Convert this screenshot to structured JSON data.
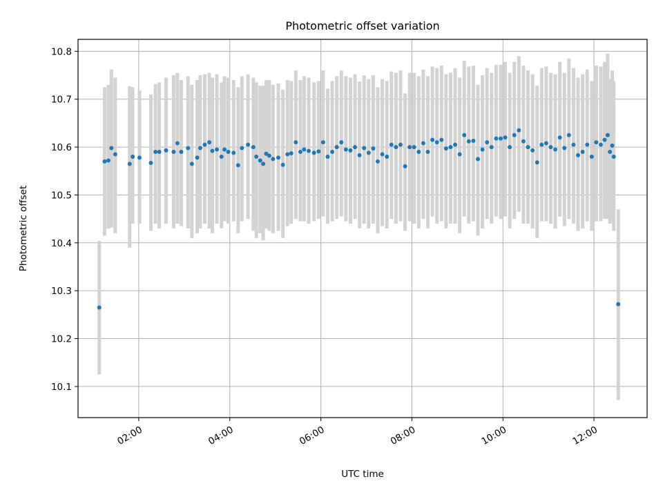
{
  "chart_data": {
    "type": "scatter",
    "title": "Photometric offset variation",
    "xlabel": "UTC time",
    "ylabel": "Photometric offset",
    "x_ticks": [
      "02:00",
      "04:00",
      "06:00",
      "08:00",
      "10:00",
      "12:00"
    ],
    "y_ticks": [
      "10.1",
      "10.2",
      "10.3",
      "10.4",
      "10.5",
      "10.6",
      "10.7",
      "10.8"
    ],
    "xlim": [
      "00:40",
      "13:10"
    ],
    "ylim": [
      10.035,
      10.825
    ],
    "grid": true,
    "colors": {
      "points": "#1f77b4",
      "errorbars": "#d3d3d3",
      "grid": "#b0b0b0"
    },
    "series": [
      {
        "x": [
          "01:08",
          "01:15",
          "01:20",
          "01:24",
          "01:29",
          "01:48",
          "01:52",
          "02:01",
          "02:16",
          "02:22",
          "02:27",
          "02:36",
          "02:46",
          "02:51",
          "02:56",
          "03:05",
          "03:10",
          "03:17",
          "03:21",
          "03:27",
          "03:33",
          "03:37",
          "03:43",
          "03:49",
          "03:53",
          "03:58",
          "04:05",
          "04:11",
          "04:16",
          "04:24",
          "04:31",
          "04:35",
          "04:40",
          "04:44",
          "04:48",
          "04:52",
          "04:57",
          "05:04",
          "05:10",
          "05:16",
          "05:21",
          "05:27",
          "05:33",
          "05:38",
          "05:44",
          "05:51",
          "05:57",
          "06:03",
          "06:09",
          "06:15",
          "06:21",
          "06:27",
          "06:33",
          "06:39",
          "06:45",
          "06:51",
          "06:57",
          "07:03",
          "07:09",
          "07:15",
          "07:21",
          "07:27",
          "07:33",
          "07:39",
          "07:45",
          "07:51",
          "07:57",
          "08:03",
          "08:09",
          "08:15",
          "08:21",
          "08:27",
          "08:33",
          "08:39",
          "08:45",
          "08:51",
          "08:57",
          "09:03",
          "09:09",
          "09:15",
          "09:21",
          "09:27",
          "09:33",
          "09:39",
          "09:45",
          "09:51",
          "09:57",
          "10:03",
          "10:09",
          "10:15",
          "10:21",
          "10:27",
          "10:33",
          "10:39",
          "10:45",
          "10:51",
          "10:57",
          "11:03",
          "11:09",
          "11:15",
          "11:21",
          "11:27",
          "11:33",
          "11:39",
          "11:45",
          "11:51",
          "11:57",
          "12:03",
          "12:09",
          "12:14",
          "12:18",
          "12:21",
          "12:24",
          "12:26",
          "12:32"
        ],
        "y": [
          10.265,
          10.57,
          10.572,
          10.598,
          10.585,
          10.565,
          10.58,
          10.578,
          10.567,
          10.59,
          10.59,
          10.593,
          10.59,
          10.608,
          10.59,
          10.598,
          10.565,
          10.578,
          10.598,
          10.605,
          10.61,
          10.592,
          10.595,
          10.58,
          10.595,
          10.59,
          10.588,
          10.562,
          10.598,
          10.605,
          10.6,
          10.58,
          10.572,
          10.565,
          10.586,
          10.582,
          10.575,
          10.578,
          10.563,
          10.585,
          10.587,
          10.61,
          10.59,
          10.595,
          10.592,
          10.588,
          10.591,
          10.61,
          10.58,
          10.59,
          10.6,
          10.61,
          10.595,
          10.593,
          10.6,
          10.583,
          10.598,
          10.588,
          10.597,
          10.57,
          10.585,
          10.58,
          10.605,
          10.6,
          10.605,
          10.56,
          10.6,
          10.6,
          10.59,
          10.608,
          10.59,
          10.615,
          10.61,
          10.615,
          10.597,
          10.6,
          10.605,
          10.585,
          10.625,
          10.612,
          10.613,
          10.575,
          10.595,
          10.61,
          10.6,
          10.618,
          10.618,
          10.62,
          10.6,
          10.625,
          10.635,
          10.612,
          10.6,
          10.593,
          10.568,
          10.605,
          10.608,
          10.6,
          10.595,
          10.62,
          10.598,
          10.625,
          10.605,
          10.583,
          10.59,
          10.605,
          10.58,
          10.61,
          10.605,
          10.615,
          10.625,
          10.59,
          10.603,
          10.58,
          10.272
        ],
        "yerr_low": [
          10.125,
          10.415,
          10.43,
          10.432,
          10.42,
          10.39,
          10.44,
          10.44,
          10.425,
          10.44,
          10.43,
          10.44,
          10.43,
          10.44,
          10.435,
          10.43,
          10.41,
          10.42,
          10.43,
          10.44,
          10.43,
          10.42,
          10.44,
          10.43,
          10.445,
          10.44,
          10.445,
          10.42,
          10.445,
          10.45,
          10.425,
          10.41,
          10.42,
          10.405,
          10.43,
          10.425,
          10.42,
          10.425,
          10.41,
          10.435,
          10.44,
          10.45,
          10.445,
          10.445,
          10.44,
          10.445,
          10.45,
          10.455,
          10.44,
          10.445,
          10.45,
          10.455,
          10.445,
          10.44,
          10.45,
          10.43,
          10.44,
          10.43,
          10.44,
          10.42,
          10.435,
          10.43,
          10.45,
          10.44,
          10.445,
          10.425,
          10.445,
          10.44,
          10.43,
          10.45,
          10.43,
          10.455,
          10.44,
          10.445,
          10.43,
          10.44,
          10.44,
          10.42,
          10.455,
          10.44,
          10.445,
          10.415,
          10.43,
          10.45,
          10.44,
          10.455,
          10.45,
          10.455,
          10.43,
          10.45,
          10.465,
          10.44,
          10.44,
          10.43,
          10.41,
          10.445,
          10.445,
          10.44,
          10.43,
          10.455,
          10.435,
          10.45,
          10.44,
          10.425,
          10.43,
          10.445,
          10.425,
          10.445,
          10.445,
          10.45,
          10.45,
          10.44,
          10.445,
          10.425,
          10.072
        ],
        "yerr_high": [
          10.404,
          10.725,
          10.73,
          10.762,
          10.745,
          10.727,
          10.725,
          10.718,
          10.71,
          10.732,
          10.735,
          10.745,
          10.75,
          10.755,
          10.74,
          10.748,
          10.73,
          10.74,
          10.75,
          10.752,
          10.755,
          10.745,
          10.752,
          10.735,
          10.748,
          10.745,
          10.74,
          10.725,
          10.748,
          10.752,
          10.745,
          10.735,
          10.728,
          10.728,
          10.74,
          10.74,
          10.73,
          10.733,
          10.72,
          10.74,
          10.738,
          10.76,
          10.74,
          10.748,
          10.745,
          10.735,
          10.738,
          10.76,
          10.722,
          10.738,
          10.748,
          10.76,
          10.748,
          10.745,
          10.752,
          10.737,
          10.75,
          10.742,
          10.75,
          10.725,
          10.742,
          10.738,
          10.758,
          10.755,
          10.76,
          10.712,
          10.755,
          10.755,
          10.748,
          10.762,
          10.748,
          10.768,
          10.765,
          10.77,
          10.752,
          10.755,
          10.765,
          10.745,
          10.78,
          10.768,
          10.77,
          10.73,
          10.75,
          10.765,
          10.755,
          10.772,
          10.772,
          10.778,
          10.755,
          10.778,
          10.79,
          10.77,
          10.76,
          10.752,
          10.728,
          10.765,
          10.768,
          10.755,
          10.752,
          10.778,
          10.755,
          10.785,
          10.765,
          10.745,
          10.752,
          10.762,
          10.738,
          10.77,
          10.768,
          10.778,
          10.795,
          10.742,
          10.76,
          10.738,
          10.47
        ]
      }
    ]
  }
}
